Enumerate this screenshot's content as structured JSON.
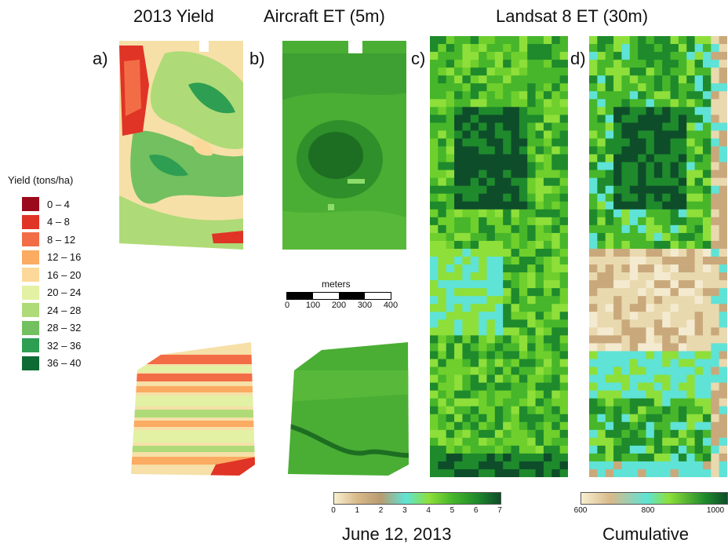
{
  "titles": {
    "yield": "2013 Yield",
    "aircraft": "Aircraft ET (5m)",
    "landsat": "Landsat 8 ET (30m)"
  },
  "panel_labels": {
    "a": "a)",
    "b": "b)",
    "c": "c)",
    "d": "d)"
  },
  "legend": {
    "title": "Yield (tons/ha)",
    "items": [
      {
        "label": "0 – 4",
        "color": "#9b0a1c"
      },
      {
        "label": "4 – 8",
        "color": "#e03426"
      },
      {
        "label": "8 – 12",
        "color": "#f26d46"
      },
      {
        "label": "12 – 16",
        "color": "#fbab62"
      },
      {
        "label": "16 – 20",
        "color": "#fcd99a"
      },
      {
        "label": "20 – 24",
        "color": "#e3f1a4"
      },
      {
        "label": "24 – 28",
        "color": "#aedb77"
      },
      {
        "label": "28 – 32",
        "color": "#72c05f"
      },
      {
        "label": "32 – 36",
        "color": "#2e9e52"
      },
      {
        "label": "36 – 40",
        "color": "#0f6b34"
      }
    ]
  },
  "scalebar": {
    "unit": "meters",
    "ticks": [
      "0",
      "100",
      "200",
      "300",
      "400"
    ]
  },
  "colorbar_daily": {
    "ticks": [
      "0",
      "1",
      "2",
      "3",
      "4",
      "5",
      "6",
      "7"
    ],
    "caption": "June 12, 2013"
  },
  "colorbar_cumulative": {
    "ticks": [
      "600",
      "800",
      "1000"
    ],
    "caption": "Cumulative"
  }
}
